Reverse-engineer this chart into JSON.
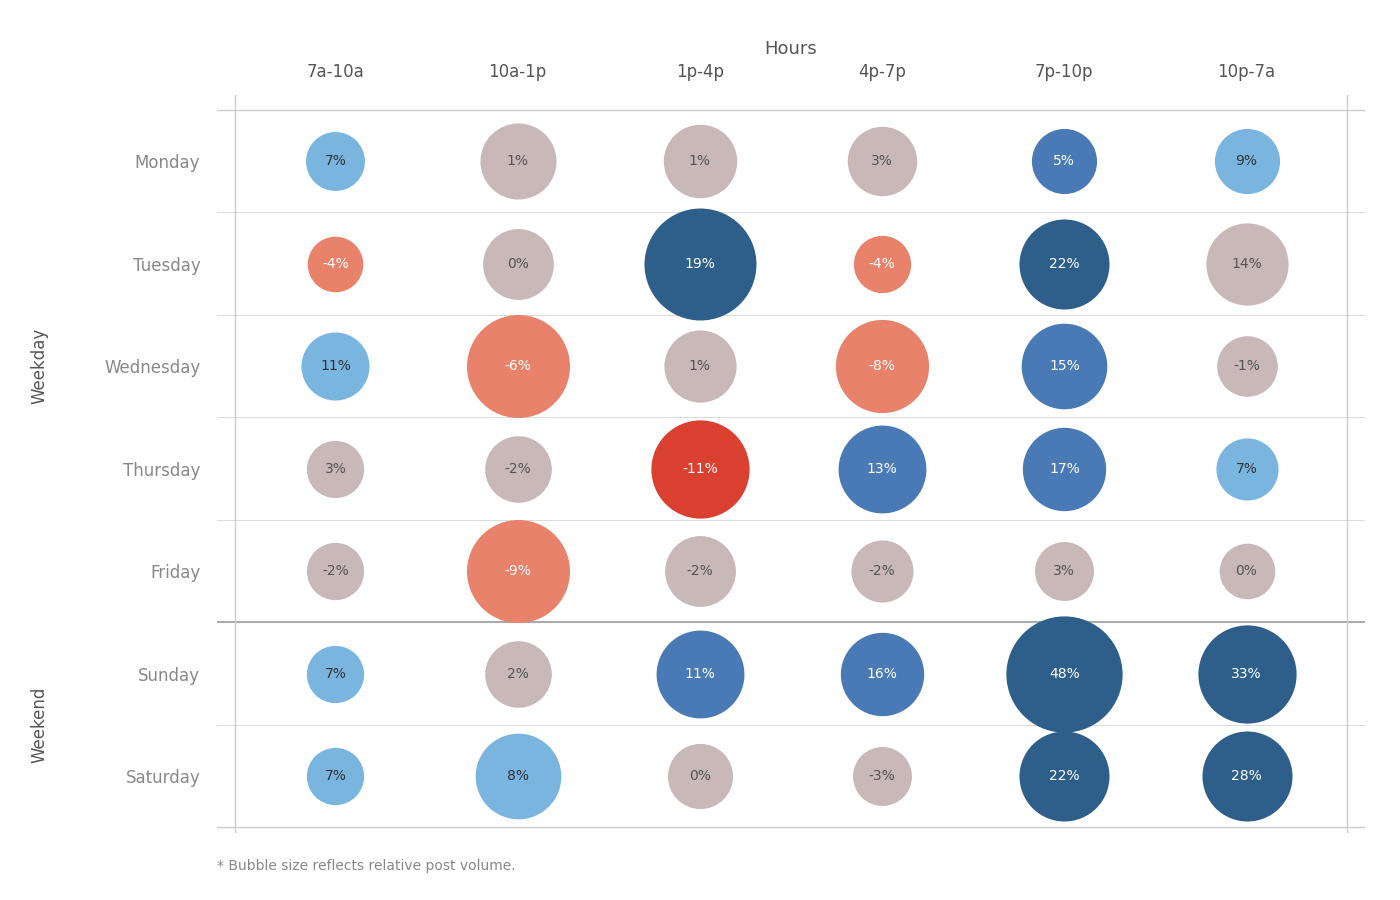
{
  "title": "Hours",
  "columns": [
    "7a-10a",
    "10a-1p",
    "1p-4p",
    "4p-7p",
    "7p-10p",
    "10p-7a"
  ],
  "rows": [
    "Monday",
    "Tuesday",
    "Wednesday",
    "Thursday",
    "Friday",
    "Sunday",
    "Saturday"
  ],
  "weekday_label": "Weekday",
  "weekend_label": "Weekend",
  "footnote": "* Bubble size reflects relative post volume.",
  "values": [
    [
      7,
      1,
      1,
      3,
      5,
      9
    ],
    [
      -4,
      0,
      19,
      -4,
      22,
      14
    ],
    [
      11,
      -6,
      1,
      -8,
      15,
      -1
    ],
    [
      3,
      -2,
      -11,
      13,
      17,
      7
    ],
    [
      -2,
      -9,
      -2,
      -2,
      3,
      0
    ],
    [
      7,
      2,
      11,
      16,
      48,
      33
    ],
    [
      7,
      8,
      0,
      -3,
      22,
      28
    ]
  ],
  "sizes": [
    [
      1800,
      3000,
      2800,
      2500,
      2200,
      2200
    ],
    [
      1600,
      2600,
      6500,
      1700,
      4200,
      3500
    ],
    [
      2400,
      5500,
      2700,
      4500,
      3800,
      1900
    ],
    [
      1700,
      2300,
      5000,
      4000,
      3600,
      2000
    ],
    [
      1700,
      5500,
      2600,
      2000,
      1800,
      1600
    ],
    [
      1700,
      2300,
      4000,
      3600,
      7000,
      5000
    ],
    [
      1700,
      3800,
      2200,
      1800,
      4200,
      4200
    ]
  ],
  "colors": [
    [
      "#7ab5e0",
      "#c8b8b8",
      "#c8b8b8",
      "#c8b8b8",
      "#4a7ab5",
      "#7ab5e0"
    ],
    [
      "#e8826a",
      "#c8b8b8",
      "#2d5f8a",
      "#e8826a",
      "#2d5f8a",
      "#c8b8b8"
    ],
    [
      "#7ab5e0",
      "#e8826a",
      "#c8b8b8",
      "#e8826a",
      "#4a7ab5",
      "#c8b8b8"
    ],
    [
      "#c8b8b8",
      "#c8b8b8",
      "#d94030",
      "#4a7ab5",
      "#4a7ab5",
      "#7ab5e0"
    ],
    [
      "#c8b8b8",
      "#e8826a",
      "#c8b8b8",
      "#c8b8b8",
      "#c8b8b8",
      "#c8b8b8"
    ],
    [
      "#7ab5e0",
      "#c8b8b8",
      "#4a7ab5",
      "#4a7ab5",
      "#2d5f8a",
      "#2d5f8a"
    ],
    [
      "#7ab5e0",
      "#7ab5e0",
      "#c8b8b8",
      "#c8b8b8",
      "#2d5f8a",
      "#2d5f8a"
    ]
  ],
  "text_colors": [
    [
      "#333333",
      "#555555",
      "#555555",
      "#555555",
      "#ffffff",
      "#333333"
    ],
    [
      "#ffffff",
      "#555555",
      "#ffffff",
      "#ffffff",
      "#ffffff",
      "#555555"
    ],
    [
      "#333333",
      "#ffffff",
      "#555555",
      "#ffffff",
      "#ffffff",
      "#555555"
    ],
    [
      "#555555",
      "#555555",
      "#ffffff",
      "#ffffff",
      "#ffffff",
      "#333333"
    ],
    [
      "#555555",
      "#ffffff",
      "#555555",
      "#555555",
      "#555555",
      "#555555"
    ],
    [
      "#333333",
      "#555555",
      "#ffffff",
      "#ffffff",
      "#ffffff",
      "#ffffff"
    ],
    [
      "#333333",
      "#333333",
      "#555555",
      "#555555",
      "#ffffff",
      "#ffffff"
    ]
  ],
  "bg_color": "#ffffff",
  "grid_color": "#cccccc",
  "sep_color": "#aaaaaa",
  "label_color": "#888888",
  "axis_label_color": "#555555"
}
